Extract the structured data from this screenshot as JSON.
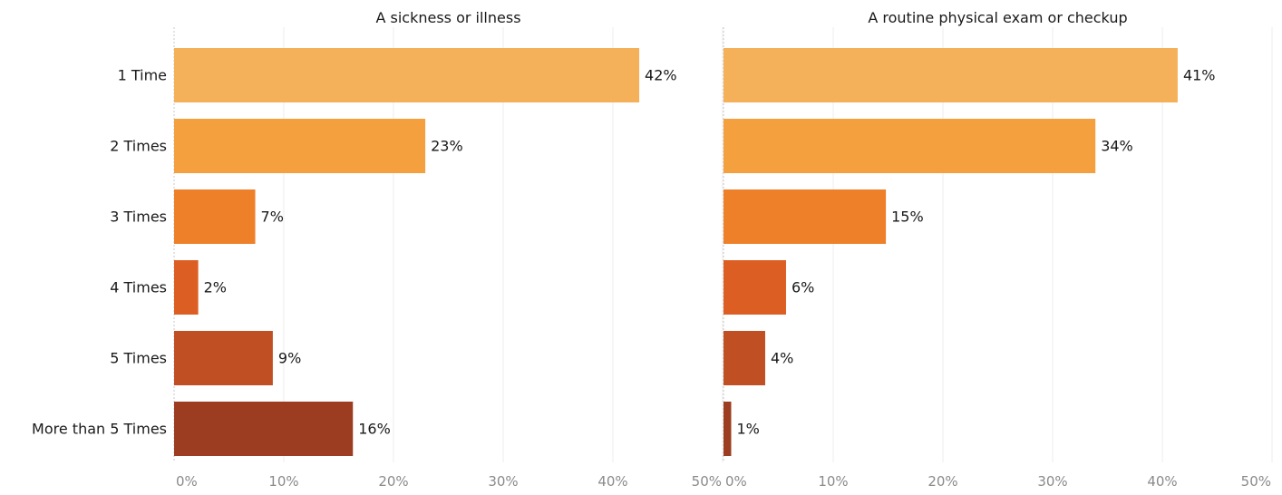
{
  "chart_data": {
    "type": "bar",
    "orientation": "horizontal",
    "categories": [
      "1 Time",
      "2 Times",
      "3 Times",
      "4 Times",
      "5 Times",
      "More than 5 Times"
    ],
    "colors": [
      "#f5b05a",
      "#f4a03e",
      "#ee8029",
      "#dc5e23",
      "#c04f24",
      "#9c3d22"
    ],
    "xlim": [
      0,
      50
    ],
    "xticks": [
      "0%",
      "10%",
      "20%",
      "30%",
      "40%",
      "50%"
    ],
    "grid": true,
    "panels": [
      {
        "title": "A sickness or illness",
        "values": [
          42.4,
          22.9,
          7.4,
          2.2,
          9.0,
          16.3
        ],
        "labels": [
          "42%",
          "23%",
          "7%",
          "2%",
          "9%",
          "16%"
        ]
      },
      {
        "title": "A routine physical exam or checkup",
        "values": [
          41.4,
          33.9,
          14.8,
          5.7,
          3.8,
          0.7
        ],
        "labels": [
          "41%",
          "34%",
          "15%",
          "6%",
          "4%",
          "1%"
        ]
      }
    ]
  }
}
